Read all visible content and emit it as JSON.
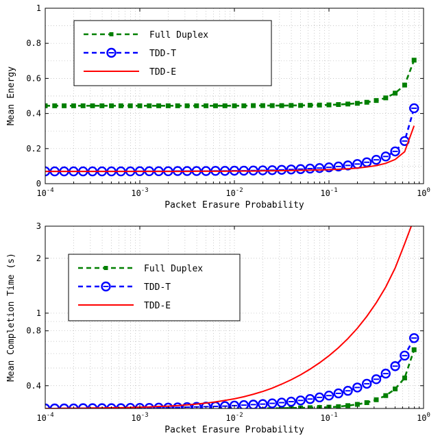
{
  "chart_data": [
    {
      "type": "line",
      "title": "",
      "xlabel": "Packet Erasure Probability",
      "ylabel": "Mean Energy",
      "xscale": "log",
      "yscale": "linear",
      "xlim": [
        0.0001,
        1
      ],
      "ylim": [
        0,
        1
      ],
      "grid": true,
      "legend_position": "top-left",
      "x_ticks": [
        {
          "value": 0.0001,
          "base": "10",
          "exp": "-4"
        },
        {
          "value": 0.001,
          "base": "10",
          "exp": "-3"
        },
        {
          "value": 0.01,
          "base": "10",
          "exp": "-2"
        },
        {
          "value": 0.1,
          "base": "10",
          "exp": "-1"
        },
        {
          "value": 1,
          "base": "10",
          "exp": "0"
        }
      ],
      "y_ticks": [
        {
          "value": 0,
          "label": "0"
        },
        {
          "value": 0.2,
          "label": "0.2"
        },
        {
          "value": 0.4,
          "label": "0.4"
        },
        {
          "value": 0.6,
          "label": "0.6"
        },
        {
          "value": 0.8,
          "label": "0.8"
        },
        {
          "value": 1,
          "label": "1"
        }
      ],
      "series": [
        {
          "name": "Full Duplex",
          "color": "#007f00",
          "dash": "dashed",
          "marker": "square",
          "x": [
            0.0001,
            0.0001259,
            0.0001585,
            0.0001995,
            0.0002512,
            0.0003162,
            0.0003981,
            0.0005012,
            0.000631,
            0.0007943,
            0.001,
            0.001259,
            0.001585,
            0.001995,
            0.002512,
            0.003162,
            0.003981,
            0.005012,
            0.00631,
            0.007943,
            0.01,
            0.01259,
            0.01585,
            0.01995,
            0.02512,
            0.03162,
            0.03981,
            0.05012,
            0.0631,
            0.07943,
            0.1,
            0.1259,
            0.1585,
            0.1995,
            0.2512,
            0.3162,
            0.3981,
            0.5012,
            0.631,
            0.7943
          ],
          "y": [
            0.444,
            0.444,
            0.444,
            0.444,
            0.444,
            0.444,
            0.444,
            0.444,
            0.444,
            0.444,
            0.444,
            0.444,
            0.444,
            0.444,
            0.444,
            0.444,
            0.444,
            0.444,
            0.444,
            0.444,
            0.444,
            0.444,
            0.445,
            0.445,
            0.445,
            0.445,
            0.446,
            0.446,
            0.447,
            0.448,
            0.449,
            0.451,
            0.454,
            0.458,
            0.464,
            0.474,
            0.489,
            0.516,
            0.562,
            0.704
          ]
        },
        {
          "name": "TDD-T",
          "color": "#0000ff",
          "dash": "dashed",
          "marker": "circle",
          "x": [
            0.0001,
            0.0001259,
            0.0001585,
            0.0001995,
            0.0002512,
            0.0003162,
            0.0003981,
            0.0005012,
            0.000631,
            0.0007943,
            0.001,
            0.001259,
            0.001585,
            0.001995,
            0.002512,
            0.003162,
            0.003981,
            0.005012,
            0.00631,
            0.007943,
            0.01,
            0.01259,
            0.01585,
            0.01995,
            0.02512,
            0.03162,
            0.03981,
            0.05012,
            0.0631,
            0.07943,
            0.1,
            0.1259,
            0.1585,
            0.1995,
            0.2512,
            0.3162,
            0.3981,
            0.5012,
            0.631,
            0.7943
          ],
          "y": [
            0.07,
            0.07,
            0.07,
            0.07,
            0.07,
            0.07,
            0.07,
            0.07,
            0.07,
            0.07,
            0.071,
            0.071,
            0.071,
            0.071,
            0.072,
            0.072,
            0.072,
            0.072,
            0.073,
            0.073,
            0.074,
            0.074,
            0.075,
            0.076,
            0.077,
            0.079,
            0.081,
            0.083,
            0.086,
            0.089,
            0.093,
            0.098,
            0.104,
            0.112,
            0.122,
            0.136,
            0.155,
            0.184,
            0.243,
            0.43
          ]
        },
        {
          "name": "TDD-E",
          "color": "#ff0000",
          "dash": "solid",
          "marker": "none",
          "x": [
            0.0001,
            0.0001259,
            0.0001585,
            0.0001995,
            0.0002512,
            0.0003162,
            0.0003981,
            0.0005012,
            0.000631,
            0.0007943,
            0.001,
            0.001259,
            0.001585,
            0.001995,
            0.002512,
            0.003162,
            0.003981,
            0.005012,
            0.00631,
            0.007943,
            0.01,
            0.01259,
            0.01585,
            0.01995,
            0.02512,
            0.03162,
            0.03981,
            0.05012,
            0.0631,
            0.07943,
            0.1,
            0.1259,
            0.1585,
            0.1995,
            0.2512,
            0.3162,
            0.3981,
            0.5012,
            0.631,
            0.7943
          ],
          "y": [
            0.07,
            0.07,
            0.07,
            0.07,
            0.07,
            0.07,
            0.07,
            0.07,
            0.07,
            0.07,
            0.07,
            0.07,
            0.07,
            0.07,
            0.07,
            0.07,
            0.071,
            0.071,
            0.071,
            0.071,
            0.072,
            0.072,
            0.072,
            0.073,
            0.073,
            0.074,
            0.075,
            0.076,
            0.077,
            0.078,
            0.08,
            0.082,
            0.085,
            0.089,
            0.095,
            0.103,
            0.116,
            0.138,
            0.182,
            0.33
          ]
        }
      ]
    },
    {
      "type": "line",
      "title": "",
      "xlabel": "Packet Erasure Probability",
      "ylabel": "Mean Completion Time (s)",
      "xscale": "log",
      "yscale": "log",
      "xlim": [
        0.0001,
        1
      ],
      "ylim": [
        0.3,
        3
      ],
      "grid": true,
      "legend_position": "top-left",
      "x_ticks": [
        {
          "value": 0.0001,
          "base": "10",
          "exp": "-4"
        },
        {
          "value": 0.001,
          "base": "10",
          "exp": "-3"
        },
        {
          "value": 0.01,
          "base": "10",
          "exp": "-2"
        },
        {
          "value": 0.1,
          "base": "10",
          "exp": "-1"
        },
        {
          "value": 1,
          "base": "10",
          "exp": "0"
        }
      ],
      "y_ticks": [
        {
          "value": 0.4,
          "label": "0.4"
        },
        {
          "value": 0.8,
          "label": "0.8"
        },
        {
          "value": 1,
          "label": "1"
        },
        {
          "value": 2,
          "label": "2"
        },
        {
          "value": 3,
          "label": "3"
        }
      ],
      "series": [
        {
          "name": "Full Duplex",
          "color": "#007f00",
          "dash": "dashed",
          "marker": "square",
          "x": [
            0.0001,
            0.0001259,
            0.0001585,
            0.0001995,
            0.0002512,
            0.0003162,
            0.0003981,
            0.0005012,
            0.000631,
            0.0007943,
            0.001,
            0.001259,
            0.001585,
            0.001995,
            0.002512,
            0.003162,
            0.003981,
            0.005012,
            0.00631,
            0.007943,
            0.01,
            0.01259,
            0.01585,
            0.01995,
            0.02512,
            0.03162,
            0.03981,
            0.05012,
            0.0631,
            0.07943,
            0.1,
            0.1259,
            0.1585,
            0.1995,
            0.2512,
            0.3162,
            0.3981,
            0.5012,
            0.631,
            0.7943
          ],
          "y": [
            0.3,
            0.3,
            0.3,
            0.3,
            0.3,
            0.3,
            0.3,
            0.3,
            0.3,
            0.3,
            0.3,
            0.3,
            0.3,
            0.3,
            0.3,
            0.3,
            0.3,
            0.3,
            0.3,
            0.3,
            0.3,
            0.3,
            0.3,
            0.301,
            0.301,
            0.301,
            0.302,
            0.302,
            0.303,
            0.304,
            0.305,
            0.307,
            0.311,
            0.316,
            0.323,
            0.335,
            0.353,
            0.384,
            0.441,
            0.63
          ]
        },
        {
          "name": "TDD-T",
          "color": "#0000ff",
          "dash": "dashed",
          "marker": "circle",
          "x": [
            0.0001,
            0.0001259,
            0.0001585,
            0.0001995,
            0.0002512,
            0.0003162,
            0.0003981,
            0.0005012,
            0.000631,
            0.0007943,
            0.001,
            0.001259,
            0.001585,
            0.001995,
            0.002512,
            0.003162,
            0.003981,
            0.005012,
            0.00631,
            0.007943,
            0.01,
            0.01259,
            0.01585,
            0.01995,
            0.02512,
            0.03162,
            0.03981,
            0.05012,
            0.0631,
            0.07943,
            0.1,
            0.1259,
            0.1585,
            0.1995,
            0.2512,
            0.3162,
            0.3981,
            0.5012,
            0.631,
            0.7943
          ],
          "y": [
            0.3,
            0.3,
            0.3,
            0.3,
            0.301,
            0.301,
            0.301,
            0.301,
            0.301,
            0.302,
            0.302,
            0.302,
            0.303,
            0.303,
            0.304,
            0.305,
            0.306,
            0.307,
            0.308,
            0.309,
            0.311,
            0.313,
            0.315,
            0.317,
            0.32,
            0.323,
            0.327,
            0.332,
            0.338,
            0.345,
            0.353,
            0.363,
            0.375,
            0.391,
            0.41,
            0.434,
            0.466,
            0.512,
            0.585,
            0.73
          ]
        },
        {
          "name": "TDD-E",
          "color": "#ff0000",
          "dash": "solid",
          "marker": "none",
          "x": [
            0.0001,
            0.0001259,
            0.0001585,
            0.0001995,
            0.0002512,
            0.0003162,
            0.0003981,
            0.0005012,
            0.000631,
            0.0007943,
            0.001,
            0.001259,
            0.001585,
            0.001995,
            0.002512,
            0.003162,
            0.003981,
            0.005012,
            0.00631,
            0.007943,
            0.01,
            0.01259,
            0.01585,
            0.01995,
            0.02512,
            0.03162,
            0.03981,
            0.05012,
            0.0631,
            0.07943,
            0.1,
            0.1259,
            0.1585,
            0.1995,
            0.2512,
            0.3162,
            0.3981,
            0.5012,
            0.631,
            0.7943
          ],
          "y": [
            0.3,
            0.3,
            0.301,
            0.301,
            0.301,
            0.302,
            0.302,
            0.303,
            0.303,
            0.304,
            0.305,
            0.306,
            0.308,
            0.309,
            0.311,
            0.314,
            0.317,
            0.321,
            0.326,
            0.332,
            0.339,
            0.348,
            0.359,
            0.372,
            0.388,
            0.408,
            0.431,
            0.459,
            0.493,
            0.534,
            0.584,
            0.646,
            0.725,
            0.826,
            0.96,
            1.14,
            1.39,
            1.77,
            2.4,
            3.3
          ]
        }
      ]
    }
  ]
}
